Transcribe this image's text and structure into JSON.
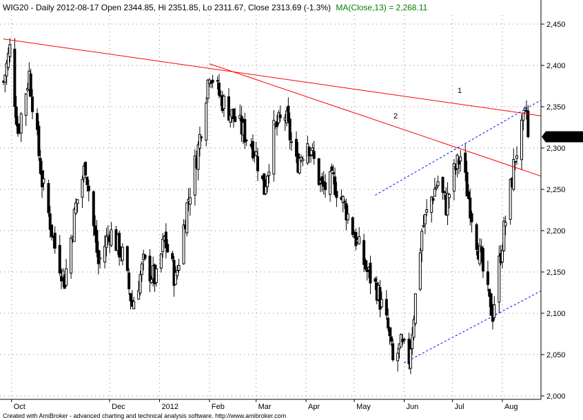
{
  "header": {
    "symbol_info": "WIG20 - Daily 2012-08-17 Open 2344.85, Hi 2351.85, Lo 2311.67, Close 2313.69 (-1.3%)",
    "ma_info": "MA(Close,13) = 2,268.11"
  },
  "footer": "Created with AmiBroker - advanced charting and technical analysis software. http://www.amibroker.com",
  "colors": {
    "candle": "#000000",
    "trendline": "#ff0000",
    "channel": "#0000ff",
    "ma_text": "#008000",
    "price_box": "#000000",
    "price_box_text": "#ffffff",
    "grid": "#7f7f7f"
  },
  "chart_data": {
    "type": "candlestick",
    "title": "WIG20 - Daily 2012-08-17",
    "y_axis": {
      "ticks": [
        2000,
        2050,
        2100,
        2150,
        2200,
        2250,
        2300,
        2350,
        2400,
        2450
      ],
      "tick_labels": [
        "2,000",
        "2,050",
        "2,100",
        "2,150",
        "2,200",
        "2,250",
        "2,300",
        "2,350",
        "2,400",
        "2,450"
      ],
      "range": [
        2000,
        2460
      ]
    },
    "x_axis": {
      "labels": [
        "Oct",
        "Dec",
        "2012",
        "Feb",
        "Mar",
        "Apr",
        "May",
        "Jun",
        "Jul",
        "Aug"
      ],
      "range": [
        "2011-09-26",
        "2012-08-25"
      ]
    },
    "last_close_label": "2,313.69",
    "last_close": 2313.69,
    "grid": "dotted",
    "trendline_labels": [
      "1",
      "2"
    ],
    "trendlines": [
      {
        "label": "1",
        "style": "solid",
        "color": "red",
        "points": [
          [
            "2011-09-26",
            2432
          ],
          [
            "2012-08-25",
            2339
          ]
        ]
      },
      {
        "label": "2",
        "style": "solid",
        "color": "red",
        "points": [
          [
            "2012-02-01",
            2402
          ],
          [
            "2012-08-25",
            2266
          ]
        ]
      },
      {
        "label": "",
        "style": "dashed",
        "color": "blue",
        "points": [
          [
            "2012-05-14",
            2243
          ],
          [
            "2012-08-25",
            2358
          ]
        ]
      },
      {
        "label": "",
        "style": "dashed",
        "color": "blue",
        "points": [
          [
            "2012-06-01",
            2040
          ],
          [
            "2012-08-25",
            2127
          ]
        ]
      }
    ],
    "ohlc_anchors": [
      {
        "date": "2011-09-26",
        "close": 2380
      },
      {
        "date": "2011-09-30",
        "close": 2420
      },
      {
        "date": "2011-10-05",
        "close": 2320
      },
      {
        "date": "2011-10-12",
        "close": 2390
      },
      {
        "date": "2011-10-20",
        "close": 2260
      },
      {
        "date": "2011-10-28",
        "close": 2180
      },
      {
        "date": "2011-11-03",
        "close": 2140
      },
      {
        "date": "2011-11-10",
        "close": 2230
      },
      {
        "date": "2011-11-16",
        "close": 2280
      },
      {
        "date": "2011-11-24",
        "close": 2160
      },
      {
        "date": "2011-12-01",
        "close": 2200
      },
      {
        "date": "2011-12-09",
        "close": 2170
      },
      {
        "date": "2011-12-15",
        "close": 2110
      },
      {
        "date": "2011-12-22",
        "close": 2160
      },
      {
        "date": "2011-12-30",
        "close": 2140
      },
      {
        "date": "2012-01-04",
        "close": 2190
      },
      {
        "date": "2012-01-11",
        "close": 2140
      },
      {
        "date": "2012-01-18",
        "close": 2230
      },
      {
        "date": "2012-01-25",
        "close": 2300
      },
      {
        "date": "2012-02-01",
        "close": 2395
      },
      {
        "date": "2012-02-08",
        "close": 2360
      },
      {
        "date": "2012-02-15",
        "close": 2340
      },
      {
        "date": "2012-02-22",
        "close": 2320
      },
      {
        "date": "2012-02-29",
        "close": 2300
      },
      {
        "date": "2012-03-06",
        "close": 2250
      },
      {
        "date": "2012-03-12",
        "close": 2320
      },
      {
        "date": "2012-03-19",
        "close": 2340
      },
      {
        "date": "2012-03-26",
        "close": 2280
      },
      {
        "date": "2012-04-02",
        "close": 2310
      },
      {
        "date": "2012-04-11",
        "close": 2250
      },
      {
        "date": "2012-04-18",
        "close": 2260
      },
      {
        "date": "2012-04-25",
        "close": 2230
      },
      {
        "date": "2012-05-02",
        "close": 2190
      },
      {
        "date": "2012-05-09",
        "close": 2150
      },
      {
        "date": "2012-05-15",
        "close": 2130
      },
      {
        "date": "2012-05-22",
        "close": 2080
      },
      {
        "date": "2012-05-25",
        "close": 2040
      },
      {
        "date": "2012-05-30",
        "close": 2060
      },
      {
        "date": "2012-06-04",
        "close": 2045
      },
      {
        "date": "2012-06-07",
        "close": 2100
      },
      {
        "date": "2012-06-12",
        "close": 2200
      },
      {
        "date": "2012-06-18",
        "close": 2240
      },
      {
        "date": "2012-06-22",
        "close": 2260
      },
      {
        "date": "2012-06-27",
        "close": 2230
      },
      {
        "date": "2012-07-02",
        "close": 2270
      },
      {
        "date": "2012-07-06",
        "close": 2290
      },
      {
        "date": "2012-07-10",
        "close": 2250
      },
      {
        "date": "2012-07-13",
        "close": 2220
      },
      {
        "date": "2012-07-17",
        "close": 2180
      },
      {
        "date": "2012-07-20",
        "close": 2150
      },
      {
        "date": "2012-07-24",
        "close": 2110
      },
      {
        "date": "2012-07-26",
        "close": 2100
      },
      {
        "date": "2012-07-30",
        "close": 2160
      },
      {
        "date": "2012-08-02",
        "close": 2200
      },
      {
        "date": "2012-08-06",
        "close": 2250
      },
      {
        "date": "2012-08-09",
        "close": 2290
      },
      {
        "date": "2012-08-13",
        "close": 2320
      },
      {
        "date": "2012-08-16",
        "close": 2344
      },
      {
        "date": "2012-08-17",
        "open": 2344.85,
        "high": 2351.85,
        "low": 2311.67,
        "close": 2313.69
      }
    ]
  }
}
